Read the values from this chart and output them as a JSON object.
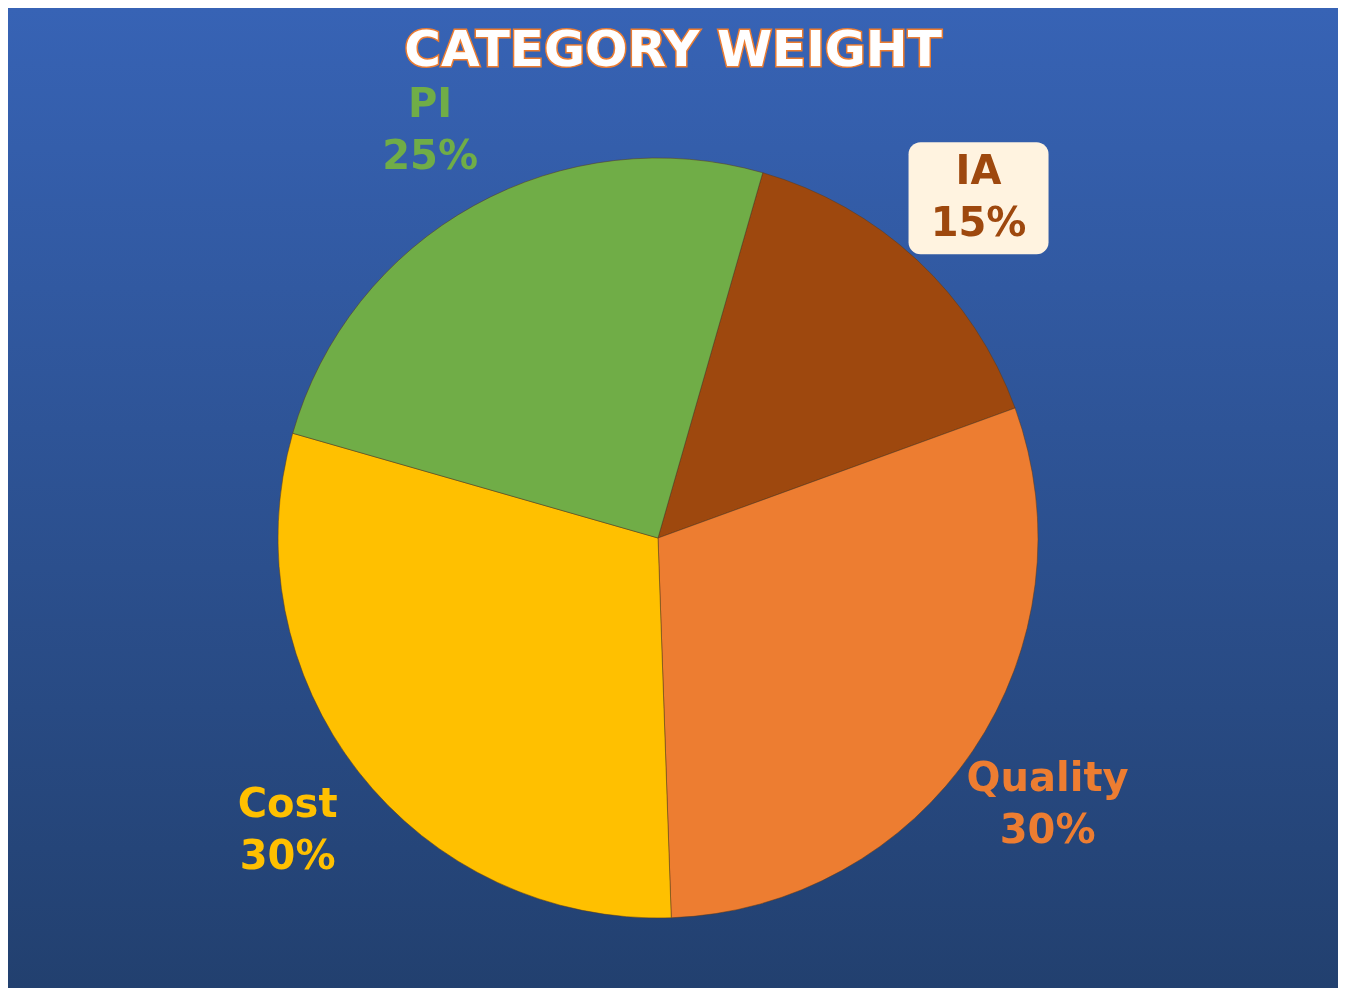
{
  "chart_data": {
    "type": "pie",
    "title": "CATEGORY WEIGHT",
    "categories": [
      "IA",
      "Quality",
      "Cost",
      "PI"
    ],
    "values": [
      15,
      30,
      30,
      25
    ],
    "value_labels": [
      "15%",
      "30%",
      "30%",
      "25%"
    ],
    "colors": [
      "#9e480e",
      "#ed7d31",
      "#ffc000",
      "#70ad47"
    ]
  }
}
